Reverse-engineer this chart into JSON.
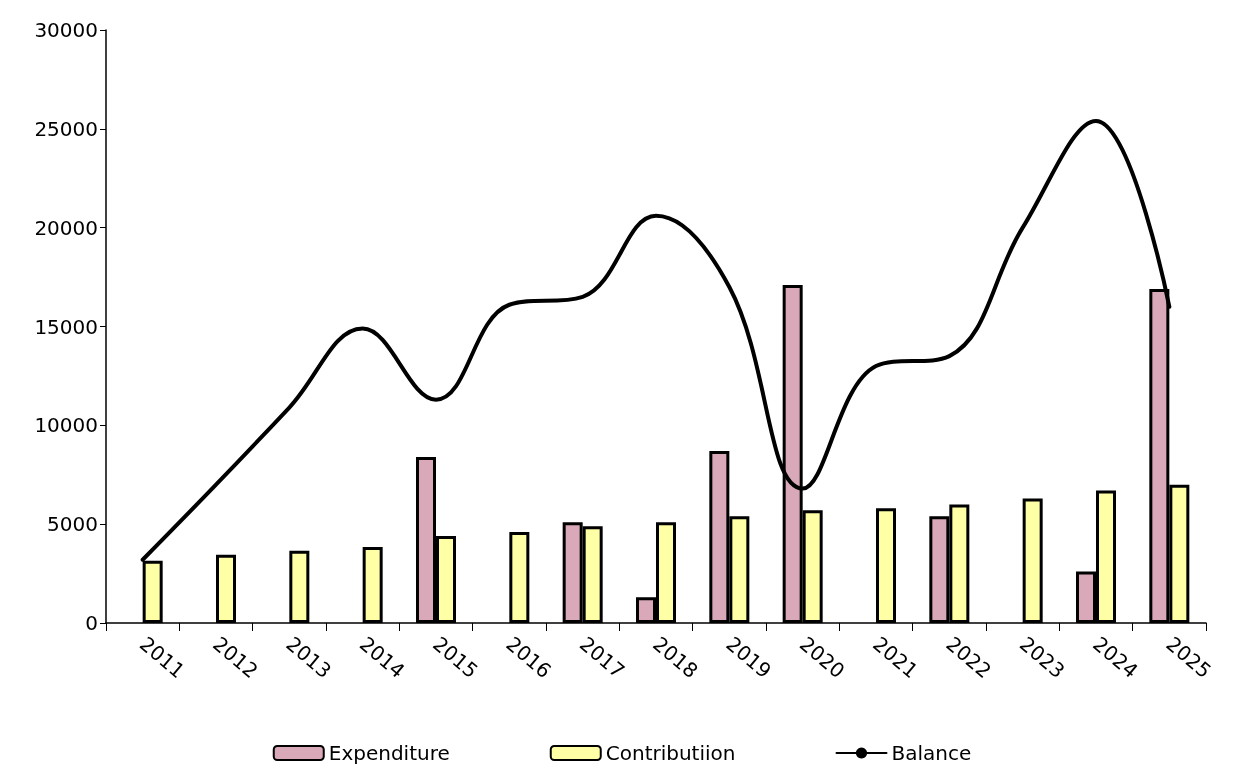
{
  "chart_data": {
    "type": "bar",
    "categories": [
      "2011",
      "2012",
      "2013",
      "2014",
      "2015",
      "2016",
      "2017",
      "2018",
      "2019",
      "2020",
      "2021",
      "2022",
      "2023",
      "2024",
      "2025"
    ],
    "series": [
      {
        "name": "Expenditure",
        "color": "#d9a9ba",
        "values": [
          null,
          null,
          null,
          null,
          8400,
          null,
          5100,
          1300,
          8700,
          17100,
          null,
          5400,
          null,
          2600,
          16900
        ]
      },
      {
        "name": "Contributiion",
        "color": "#ffffa6",
        "values": [
          3150,
          3450,
          3650,
          3850,
          4400,
          4600,
          4900,
          5100,
          5400,
          5700,
          5800,
          6000,
          6300,
          6700,
          7000
        ]
      },
      {
        "name": "Balance",
        "type": "line",
        "color": "#000000",
        "values": [
          3200,
          7000,
          10900,
          14900,
          11300,
          16100,
          16500,
          20600,
          17000,
          6800,
          13000,
          13500,
          20000,
          25400,
          16000
        ]
      }
    ],
    "ylim": [
      0,
      30000
    ],
    "yticks": [
      0,
      5000,
      10000,
      15000,
      20000,
      25000,
      30000
    ],
    "grid": false,
    "legend": "bottom",
    "marker": "none",
    "line_style": "solid"
  }
}
